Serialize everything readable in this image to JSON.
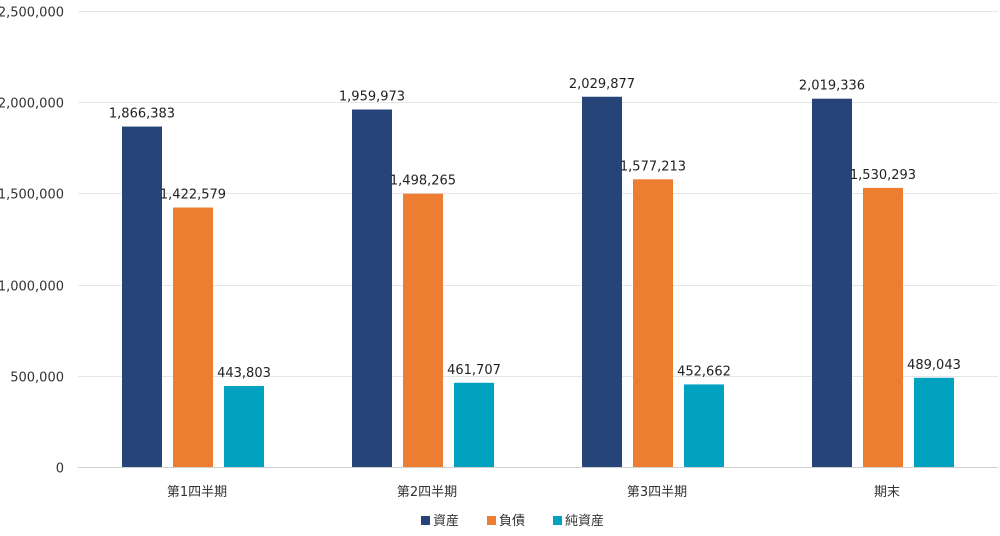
{
  "chart_data": {
    "type": "bar",
    "categories": [
      "第1四半期",
      "第2四半期",
      "第3四半期",
      "期末"
    ],
    "series": [
      {
        "name": "資産",
        "color": "#264478",
        "values": [
          1866383,
          1959973,
          2029877,
          2019336
        ],
        "labels": [
          "1,866,383",
          "1,959,973",
          "2,029,877",
          "2,019,336"
        ]
      },
      {
        "name": "負債",
        "color": "#ED7D31",
        "values": [
          1422579,
          1498265,
          1577213,
          1530293
        ],
        "labels": [
          "1,422,579",
          "1,498,265",
          "1,577,213",
          "1,530,293"
        ]
      },
      {
        "name": "純資産",
        "color": "#00A2BF",
        "values": [
          443803,
          461707,
          452662,
          489043
        ],
        "labels": [
          "443,803",
          "461,707",
          "452,662",
          "489,043"
        ]
      }
    ],
    "ylim": [
      0,
      2500000
    ],
    "yticks": [
      {
        "value": 0,
        "label": "0"
      },
      {
        "value": 500000,
        "label": "500,000"
      },
      {
        "value": 1000000,
        "label": "1,000,000"
      },
      {
        "value": 1500000,
        "label": "1,500,000"
      },
      {
        "value": 2000000,
        "label": "2,000,000"
      },
      {
        "value": 2500000,
        "label": "2,500,000"
      }
    ],
    "grid": true,
    "legend_position": "bottom",
    "title": "",
    "xlabel": "",
    "ylabel": ""
  }
}
